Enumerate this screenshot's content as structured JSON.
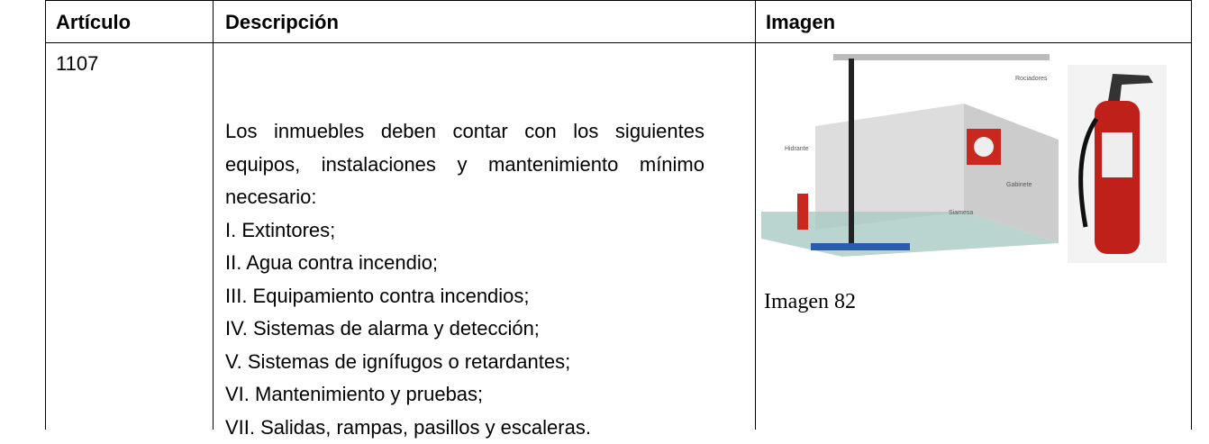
{
  "table": {
    "headers": [
      "Artículo",
      "Descripción",
      "Imagen"
    ],
    "rows": [
      {
        "article": "1107",
        "description": {
          "intro": "Los inmuebles deben contar con los siguientes equipos, instalaciones y mantenimiento mínimo necesario:",
          "items": [
            "I. Extintores;",
            "II. Agua contra incendio;",
            "III. Equipamiento contra incendios;",
            "IV. Sistemas de alarma y detección;",
            "V. Sistemas de ignífugos o retardantes;",
            "VI. Mantenimiento y pruebas;",
            "VII. Salidas, rampas, pasillos y escaleras."
          ]
        },
        "image": {
          "labels": [
            "Rociadores",
            "Hidrante",
            "Gabinete",
            "Siamesa"
          ],
          "caption": "Imagen 82"
        }
      }
    ]
  }
}
